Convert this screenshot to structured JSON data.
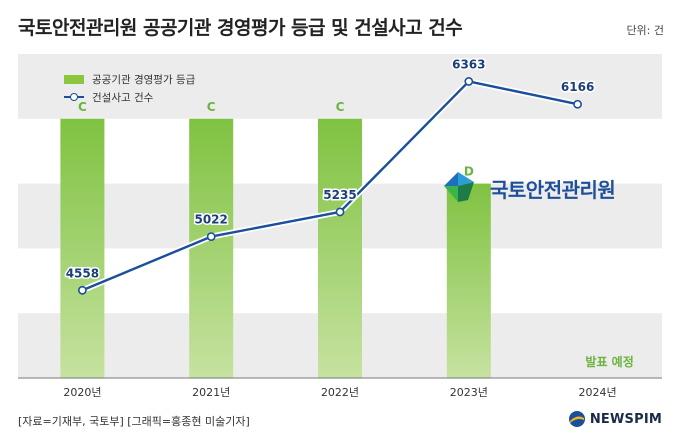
{
  "header": {
    "title": "국토안전관리원 공공기관 경영평가 등급 및 건설사고 건수",
    "unit": "단위: 건"
  },
  "footer": {
    "source": "[자료=기재부, 국토부] [그래픽=홍종현 미술기자]",
    "brand": "NEWSPIM"
  },
  "logo": {
    "text": "국토안전관리원"
  },
  "colors": {
    "bar": "#8cc63f",
    "bar_label": "#6db33f",
    "line": "#1a4f9c",
    "band": "#ececec"
  },
  "chart_data": {
    "type": "bar+line",
    "categories": [
      "2020년",
      "2021년",
      "2022년",
      "2023년",
      "2024년"
    ],
    "legend": {
      "bar": "공공기관 경영평가 등급",
      "line": "건설사고 건수",
      "placement": "top-left"
    },
    "grades": [
      "C",
      "C",
      "C",
      "D",
      "발표 예정"
    ],
    "grade_levels": [
      4,
      4,
      4,
      3,
      null
    ],
    "accidents": [
      4558,
      5022,
      5235,
      6363,
      6166
    ],
    "line_range": [
      3800,
      6600
    ]
  }
}
